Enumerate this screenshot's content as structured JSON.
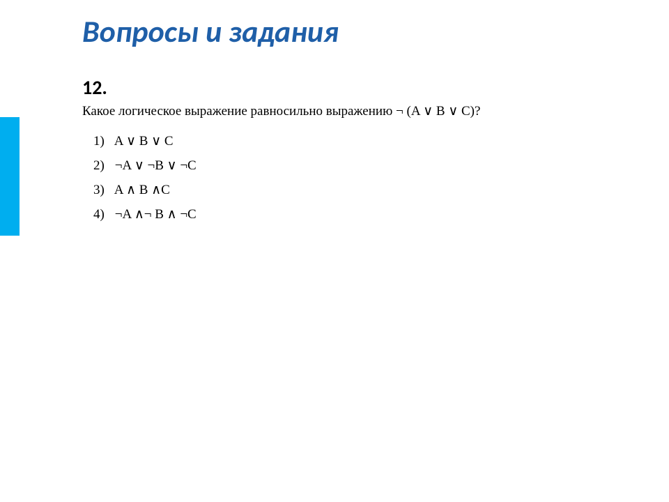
{
  "colors": {
    "accent": "#00aeef",
    "title": "#1f5fa8",
    "text": "#000000",
    "background": "#ffffff"
  },
  "title": "Вопросы и задания",
  "question_number": "12.",
  "question_text": "Какое логическое выражение равносильно выражению ¬ (A ∨ B ∨ C)?",
  "options": [
    {
      "num": "1)",
      "expr": "A ∨ B ∨ C"
    },
    {
      "num": "2)",
      "expr": "¬A ∨ ¬B ∨ ¬C"
    },
    {
      "num": "3)",
      "expr": "A ∧ B ∧C"
    },
    {
      "num": "4)",
      "expr": "¬A ∧¬ B ∧ ¬C"
    }
  ]
}
